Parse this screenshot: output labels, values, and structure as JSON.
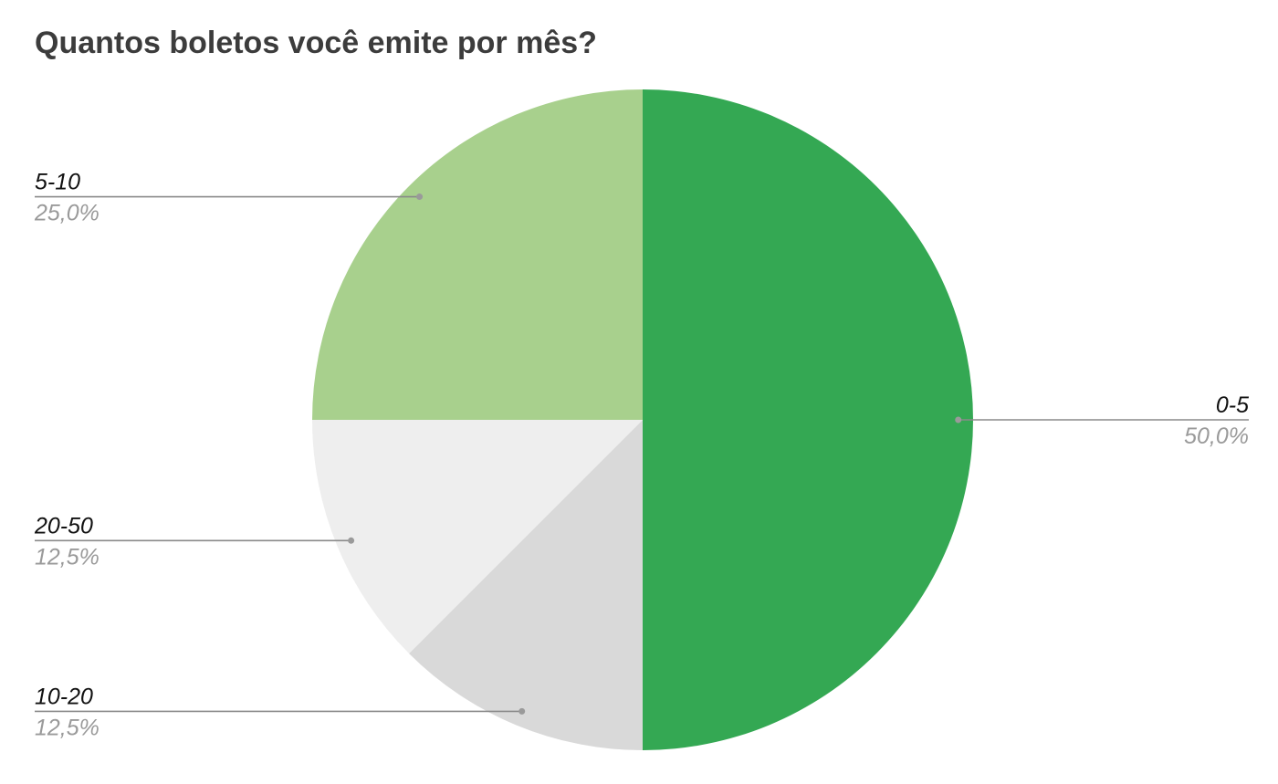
{
  "chart_data": {
    "type": "pie",
    "title": "Quantos boletos você emite por mês?",
    "start_angle_deg": 0,
    "direction": "clockwise",
    "slices": [
      {
        "label": "0-5",
        "value": 50.0,
        "percent_label": "50,0%",
        "color": "#34a853",
        "label_side": "right"
      },
      {
        "label": "10-20",
        "value": 12.5,
        "percent_label": "12,5%",
        "color": "#d9d9d9",
        "label_side": "left"
      },
      {
        "label": "20-50",
        "value": 12.5,
        "percent_label": "12,5%",
        "color": "#eeeeee",
        "label_side": "left"
      },
      {
        "label": "5-10",
        "value": 25.0,
        "percent_label": "25,0%",
        "color": "#a8d08d",
        "label_side": "left"
      }
    ]
  }
}
